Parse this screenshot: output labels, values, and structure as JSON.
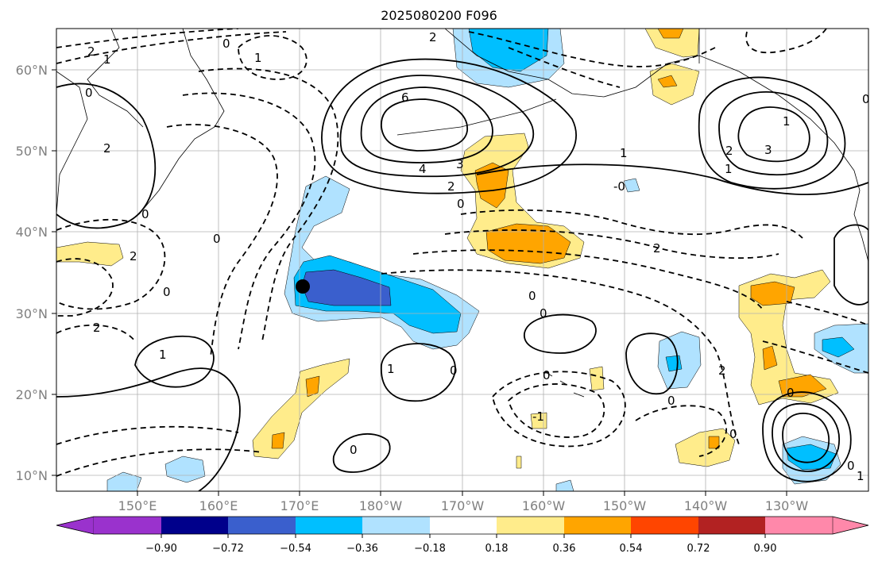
{
  "title": "2025080200 F096",
  "map": {
    "lon_labels": [
      "150°E",
      "160°E",
      "170°E",
      "180°W",
      "170°W",
      "160°W",
      "150°W",
      "140°W",
      "130°W"
    ],
    "lat_labels": [
      "60°N",
      "50°N",
      "40°N",
      "30°N",
      "20°N",
      "10°N"
    ],
    "contour_labels": [
      "0",
      "2",
      "1",
      "6",
      "4",
      "3",
      "2",
      "0",
      "0",
      "2",
      "1",
      "2",
      "0",
      "-0",
      "1",
      "0",
      "1",
      "2",
      "1",
      "3",
      "0",
      "2",
      "0",
      "2",
      "2",
      "0",
      "0",
      "0",
      "1",
      "0",
      "-1",
      "0",
      "0",
      "2",
      "0",
      "1",
      "1",
      "0",
      "0"
    ],
    "marker": "filled-circle",
    "colors": {
      "coast": "#000000",
      "grid": "#b0b0b0"
    }
  },
  "colorbar": {
    "ticks": [
      "−0.90",
      "−0.72",
      "−0.54",
      "−0.36",
      "−0.18",
      "0.18",
      "0.36",
      "0.54",
      "0.72",
      "0.90"
    ],
    "colors": [
      "#9a32cd",
      "#00008b",
      "#3a5fcd",
      "#00bfff",
      "#b0e2ff",
      "#ffffff",
      "#ffec8b",
      "#ffa500",
      "#ff4500",
      "#b22222",
      "#ff88aa"
    ]
  }
}
